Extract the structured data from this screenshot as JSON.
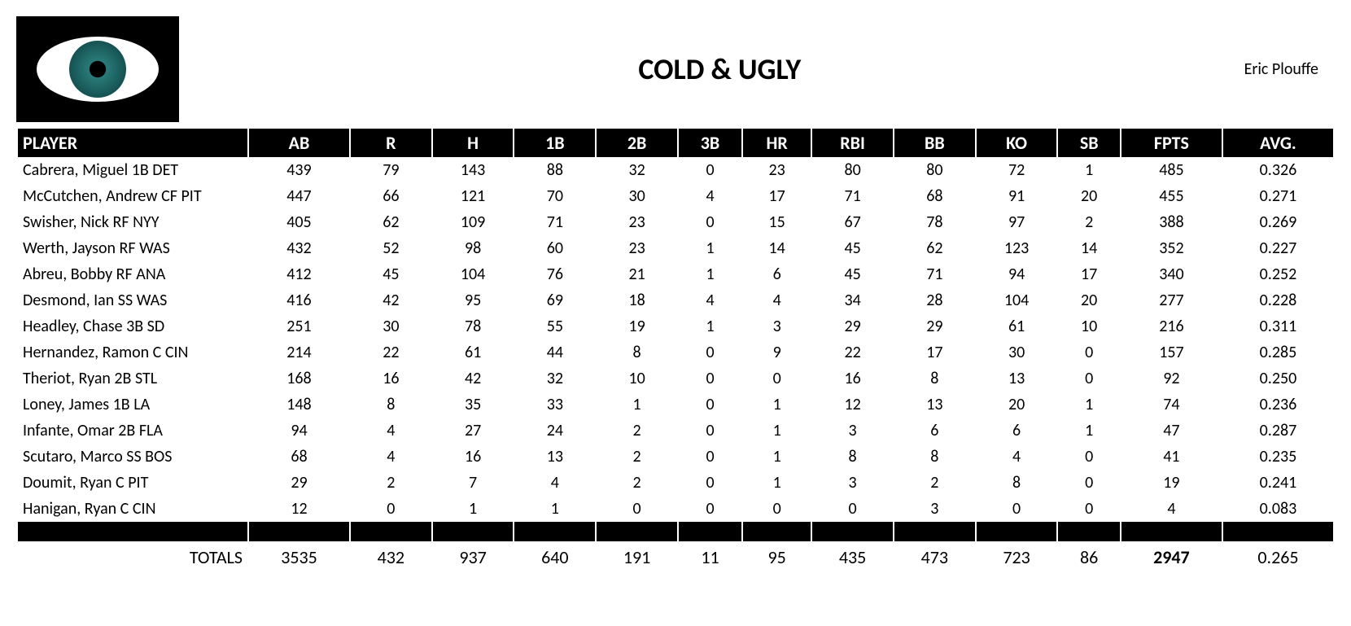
{
  "title": "COLD & UGLY",
  "owner": "Eric Plouffe",
  "columns": [
    "PLAYER",
    "AB",
    "R",
    "H",
    "1B",
    "2B",
    "3B",
    "HR",
    "RBI",
    "BB",
    "KO",
    "SB",
    "FPTS",
    "AVG."
  ],
  "rows": [
    {
      "player": "Cabrera, Miguel 1B DET",
      "ab": "439",
      "r": "79",
      "h": "143",
      "1b": "88",
      "2b": "32",
      "3b": "0",
      "hr": "23",
      "rbi": "80",
      "bb": "80",
      "ko": "72",
      "sb": "1",
      "fpts": "485",
      "avg": "0.326"
    },
    {
      "player": "McCutchen, Andrew CF PIT",
      "ab": "447",
      "r": "66",
      "h": "121",
      "1b": "70",
      "2b": "30",
      "3b": "4",
      "hr": "17",
      "rbi": "71",
      "bb": "68",
      "ko": "91",
      "sb": "20",
      "fpts": "455",
      "avg": "0.271"
    },
    {
      "player": "Swisher, Nick RF NYY",
      "ab": "405",
      "r": "62",
      "h": "109",
      "1b": "71",
      "2b": "23",
      "3b": "0",
      "hr": "15",
      "rbi": "67",
      "bb": "78",
      "ko": "97",
      "sb": "2",
      "fpts": "388",
      "avg": "0.269"
    },
    {
      "player": "Werth, Jayson RF WAS",
      "ab": "432",
      "r": "52",
      "h": "98",
      "1b": "60",
      "2b": "23",
      "3b": "1",
      "hr": "14",
      "rbi": "45",
      "bb": "62",
      "ko": "123",
      "sb": "14",
      "fpts": "352",
      "avg": "0.227"
    },
    {
      "player": "Abreu, Bobby RF ANA",
      "ab": "412",
      "r": "45",
      "h": "104",
      "1b": "76",
      "2b": "21",
      "3b": "1",
      "hr": "6",
      "rbi": "45",
      "bb": "71",
      "ko": "94",
      "sb": "17",
      "fpts": "340",
      "avg": "0.252"
    },
    {
      "player": "Desmond, Ian SS WAS",
      "ab": "416",
      "r": "42",
      "h": "95",
      "1b": "69",
      "2b": "18",
      "3b": "4",
      "hr": "4",
      "rbi": "34",
      "bb": "28",
      "ko": "104",
      "sb": "20",
      "fpts": "277",
      "avg": "0.228"
    },
    {
      "player": "Headley, Chase 3B SD",
      "ab": "251",
      "r": "30",
      "h": "78",
      "1b": "55",
      "2b": "19",
      "3b": "1",
      "hr": "3",
      "rbi": "29",
      "bb": "29",
      "ko": "61",
      "sb": "10",
      "fpts": "216",
      "avg": "0.311"
    },
    {
      "player": "Hernandez, Ramon C CIN",
      "ab": "214",
      "r": "22",
      "h": "61",
      "1b": "44",
      "2b": "8",
      "3b": "0",
      "hr": "9",
      "rbi": "22",
      "bb": "17",
      "ko": "30",
      "sb": "0",
      "fpts": "157",
      "avg": "0.285"
    },
    {
      "player": "Theriot, Ryan 2B STL",
      "ab": "168",
      "r": "16",
      "h": "42",
      "1b": "32",
      "2b": "10",
      "3b": "0",
      "hr": "0",
      "rbi": "16",
      "bb": "8",
      "ko": "13",
      "sb": "0",
      "fpts": "92",
      "avg": "0.250"
    },
    {
      "player": "Loney, James 1B LA",
      "ab": "148",
      "r": "8",
      "h": "35",
      "1b": "33",
      "2b": "1",
      "3b": "0",
      "hr": "1",
      "rbi": "12",
      "bb": "13",
      "ko": "20",
      "sb": "1",
      "fpts": "74",
      "avg": "0.236"
    },
    {
      "player": "Infante, Omar 2B FLA",
      "ab": "94",
      "r": "4",
      "h": "27",
      "1b": "24",
      "2b": "2",
      "3b": "0",
      "hr": "1",
      "rbi": "3",
      "bb": "6",
      "ko": "6",
      "sb": "1",
      "fpts": "47",
      "avg": "0.287"
    },
    {
      "player": "Scutaro, Marco SS BOS",
      "ab": "68",
      "r": "4",
      "h": "16",
      "1b": "13",
      "2b": "2",
      "3b": "0",
      "hr": "1",
      "rbi": "8",
      "bb": "8",
      "ko": "4",
      "sb": "0",
      "fpts": "41",
      "avg": "0.235"
    },
    {
      "player": "Doumit, Ryan C PIT",
      "ab": "29",
      "r": "2",
      "h": "7",
      "1b": "4",
      "2b": "2",
      "3b": "0",
      "hr": "1",
      "rbi": "3",
      "bb": "2",
      "ko": "8",
      "sb": "0",
      "fpts": "19",
      "avg": "0.241"
    },
    {
      "player": "Hanigan, Ryan C CIN",
      "ab": "12",
      "r": "0",
      "h": "1",
      "1b": "1",
      "2b": "0",
      "3b": "0",
      "hr": "0",
      "rbi": "0",
      "bb": "3",
      "ko": "0",
      "sb": "0",
      "fpts": "4",
      "avg": "0.083"
    }
  ],
  "totals_label": "TOTALS",
  "totals": {
    "ab": "3535",
    "r": "432",
    "h": "937",
    "1b": "640",
    "2b": "191",
    "3b": "11",
    "hr": "95",
    "rbi": "435",
    "bb": "473",
    "ko": "723",
    "sb": "86",
    "fpts": "2947",
    "avg": "0.265"
  },
  "colors": {
    "header_bg": "#000000",
    "header_fg": "#ffffff",
    "body_bg": "#ffffff",
    "body_fg": "#000000"
  }
}
